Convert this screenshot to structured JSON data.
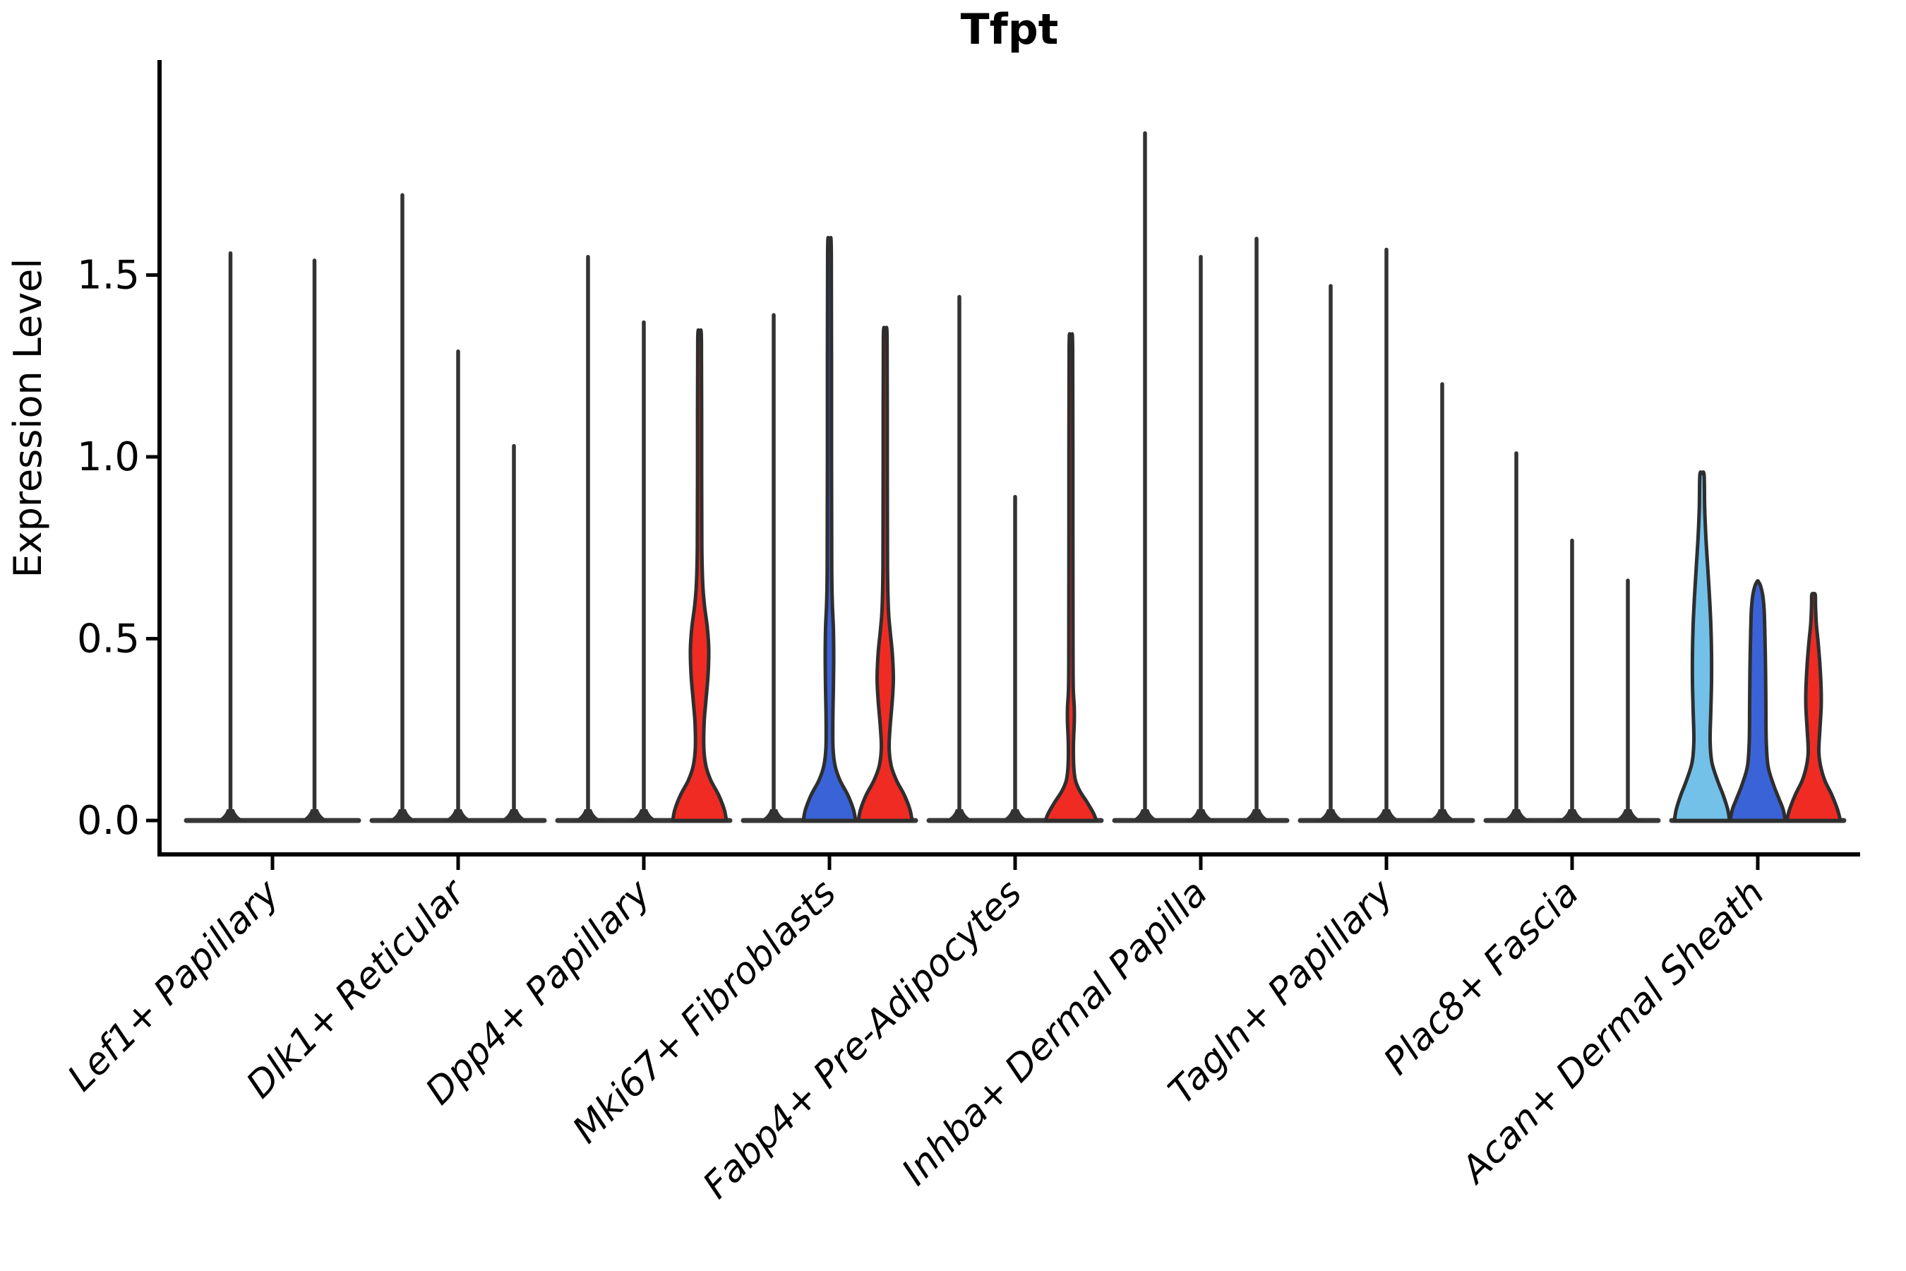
{
  "title": "Tfpt",
  "y_axis": {
    "label": "Expression Level",
    "ticks": [
      "0.0",
      "0.5",
      "1.0",
      "1.5"
    ],
    "tick_values": [
      0,
      0.5,
      1.0,
      1.5
    ]
  },
  "chart_data": {
    "type": "violin",
    "title": "Tfpt",
    "xlabel": "",
    "ylabel": "Expression Level",
    "ylim": [
      0,
      2.09
    ],
    "yticks": [
      0,
      0.5,
      1.0,
      1.5
    ],
    "grid": false,
    "legend_position": "none",
    "palette": {
      "split1": "#73c1e9",
      "split2": "#3b63d8",
      "split3": "#f02b23",
      "outline": "#2e2e2e",
      "spike": "#333333"
    },
    "categories": [
      "Lef1+ Papillary",
      "Dlk1+ Reticular",
      "Dpp4+ Papillary",
      "Mki67+ Fibroblasts",
      "Fabp4+ Pre-Adipocytes",
      "Inhba+ Dermal Papilla",
      "Tagln+ Papillary",
      "Plac8+ Fascia",
      "Acan+ Dermal Sheath"
    ],
    "groups": [
      {
        "category": "Lef1+ Papillary",
        "violins": [
          {
            "split": 1,
            "color": "#73c1e9",
            "max": 1.56,
            "profile": "spike"
          },
          {
            "split": 2,
            "color": "#3b63d8",
            "max": 1.54,
            "profile": "spike"
          }
        ]
      },
      {
        "category": "Dlk1+ Reticular",
        "violins": [
          {
            "split": 1,
            "color": "#73c1e9",
            "max": 1.72,
            "profile": "spike"
          },
          {
            "split": 2,
            "color": "#3b63d8",
            "max": 1.29,
            "profile": "spike"
          },
          {
            "split": 3,
            "color": "#f02b23",
            "max": 1.03,
            "profile": "spike"
          }
        ]
      },
      {
        "category": "Dpp4+ Papillary",
        "violins": [
          {
            "split": 1,
            "color": "#73c1e9",
            "max": 1.55,
            "profile": "spike"
          },
          {
            "split": 2,
            "color": "#3b63d8",
            "max": 1.37,
            "profile": "spike"
          },
          {
            "split": 3,
            "color": "#f02b23",
            "max": 1.32,
            "profile": [
              [
                0,
                38
              ],
              [
                0.03,
                35
              ],
              [
                0.07,
                27
              ],
              [
                0.11,
                16
              ],
              [
                0.15,
                9
              ],
              [
                0.2,
                6
              ],
              [
                0.27,
                6.5
              ],
              [
                0.33,
                9
              ],
              [
                0.4,
                12
              ],
              [
                0.47,
                13
              ],
              [
                0.53,
                11
              ],
              [
                0.59,
                7
              ],
              [
                0.65,
                4.5
              ],
              [
                0.75,
                3.2
              ],
              [
                0.95,
                2.9
              ],
              [
                1.32,
                2.6
              ]
            ]
          }
        ]
      },
      {
        "category": "Mki67+ Fibroblasts",
        "violins": [
          {
            "split": 1,
            "color": "#73c1e9",
            "max": 1.39,
            "profile": "spike"
          },
          {
            "split": 2,
            "color": "#3b63d8",
            "max": 1.56,
            "profile": [
              [
                0,
                37
              ],
              [
                0.03,
                34
              ],
              [
                0.07,
                26
              ],
              [
                0.11,
                15
              ],
              [
                0.15,
                8
              ],
              [
                0.2,
                5
              ],
              [
                0.28,
                4.8
              ],
              [
                0.36,
                5.5
              ],
              [
                0.45,
                6
              ],
              [
                0.53,
                5.5
              ],
              [
                0.6,
                4
              ],
              [
                0.7,
                3.2
              ],
              [
                1.0,
                2.9
              ],
              [
                1.56,
                2.6
              ]
            ]
          },
          {
            "split": 3,
            "color": "#f02b23",
            "max": 1.33,
            "profile": [
              [
                0,
                38
              ],
              [
                0.03,
                35
              ],
              [
                0.07,
                27
              ],
              [
                0.11,
                16
              ],
              [
                0.15,
                8.5
              ],
              [
                0.2,
                5.5
              ],
              [
                0.26,
                7
              ],
              [
                0.33,
                10
              ],
              [
                0.39,
                11.5
              ],
              [
                0.46,
                10
              ],
              [
                0.52,
                7
              ],
              [
                0.58,
                4.5
              ],
              [
                0.7,
                3.2
              ],
              [
                1.0,
                2.9
              ],
              [
                1.33,
                2.6
              ]
            ]
          }
        ]
      },
      {
        "category": "Fabp4+ Pre-Adipocytes",
        "violins": [
          {
            "split": 1,
            "color": "#73c1e9",
            "max": 1.44,
            "profile": "spike"
          },
          {
            "split": 2,
            "color": "#3b63d8",
            "max": 0.89,
            "profile": "spike"
          },
          {
            "split": 3,
            "color": "#f02b23",
            "max": 1.3,
            "profile": [
              [
                0,
                36
              ],
              [
                0.02,
                32
              ],
              [
                0.05,
                23
              ],
              [
                0.08,
                13
              ],
              [
                0.11,
                6.5
              ],
              [
                0.15,
                4
              ],
              [
                0.21,
                3.6
              ],
              [
                0.27,
                4.8
              ],
              [
                0.31,
                4.8
              ],
              [
                0.36,
                3.4
              ],
              [
                0.45,
                3
              ],
              [
                0.8,
                2.8
              ],
              [
                1.3,
                2.5
              ]
            ]
          }
        ]
      },
      {
        "category": "Inhba+ Dermal Papilla",
        "violins": [
          {
            "split": 1,
            "color": "#73c1e9",
            "max": 1.89,
            "profile": "spike"
          },
          {
            "split": 2,
            "color": "#3b63d8",
            "max": 1.55,
            "profile": "spike"
          },
          {
            "split": 3,
            "color": "#f02b23",
            "max": 1.6,
            "profile": "spike"
          }
        ]
      },
      {
        "category": "Tagln+ Papillary",
        "violins": [
          {
            "split": 1,
            "color": "#73c1e9",
            "max": 1.47,
            "profile": "spike"
          },
          {
            "split": 2,
            "color": "#3b63d8",
            "max": 1.57,
            "profile": "spike"
          },
          {
            "split": 3,
            "color": "#f02b23",
            "max": 1.2,
            "profile": "spike"
          }
        ]
      },
      {
        "category": "Plac8+ Fascia",
        "violins": [
          {
            "split": 1,
            "color": "#73c1e9",
            "max": 1.01,
            "profile": "spike"
          },
          {
            "split": 2,
            "color": "#3b63d8",
            "max": 0.77,
            "profile": "spike"
          },
          {
            "split": 3,
            "color": "#f02b23",
            "max": 0.66,
            "profile": "spike"
          }
        ]
      },
      {
        "category": "Acan+ Dermal Sheath",
        "violins": [
          {
            "split": 1,
            "color": "#73c1e9",
            "max": 0.95,
            "profile": [
              [
                0,
                39
              ],
              [
                0.03,
                36.5
              ],
              [
                0.07,
                30
              ],
              [
                0.11,
                22
              ],
              [
                0.16,
                14
              ],
              [
                0.22,
                11.5
              ],
              [
                0.3,
                12.5
              ],
              [
                0.38,
                13.5
              ],
              [
                0.46,
                13.5
              ],
              [
                0.54,
                12.5
              ],
              [
                0.62,
                10.5
              ],
              [
                0.7,
                8
              ],
              [
                0.78,
                5.5
              ],
              [
                0.86,
                3.8
              ],
              [
                0.95,
                3
              ]
            ]
          },
          {
            "split": 2,
            "color": "#3b63d8",
            "max": 0.655,
            "profile": [
              [
                0,
                39
              ],
              [
                0.03,
                36
              ],
              [
                0.06,
                30
              ],
              [
                0.1,
                22
              ],
              [
                0.15,
                14.5
              ],
              [
                0.22,
                12
              ],
              [
                0.32,
                11.5
              ],
              [
                0.42,
                11
              ],
              [
                0.52,
                10
              ],
              [
                0.58,
                9
              ],
              [
                0.62,
                7
              ],
              [
                0.645,
                4
              ],
              [
                0.655,
                1.5
              ]
            ]
          },
          {
            "split": 3,
            "color": "#f02b23",
            "max": 0.62,
            "profile": [
              [
                0,
                38
              ],
              [
                0.03,
                34
              ],
              [
                0.07,
                26
              ],
              [
                0.11,
                16
              ],
              [
                0.15,
                10
              ],
              [
                0.19,
                7.5
              ],
              [
                0.25,
                9
              ],
              [
                0.31,
                10.8
              ],
              [
                0.36,
                10.8
              ],
              [
                0.43,
                9
              ],
              [
                0.49,
                6.5
              ],
              [
                0.54,
                4
              ],
              [
                0.59,
                2.8
              ],
              [
                0.62,
                2.5
              ]
            ]
          }
        ]
      }
    ]
  }
}
